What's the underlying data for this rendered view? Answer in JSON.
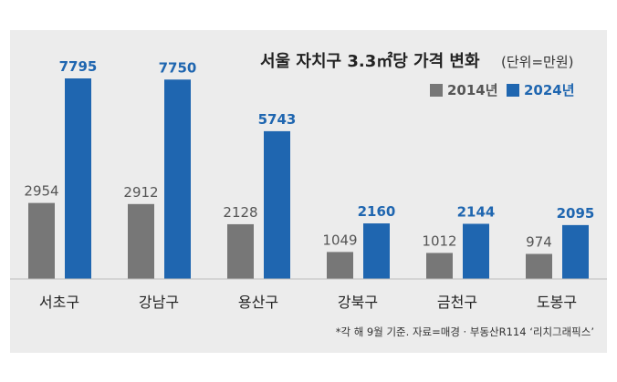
{
  "colors": {
    "series_2014": "#777777",
    "series_2024": "#1f66b0",
    "label_2014": "#555555",
    "label_2024": "#1f66b0",
    "panel_bg": "#ececec",
    "baseline": "#bdbdbd"
  },
  "chart_data": {
    "type": "bar",
    "title": "서울 자치구 3.3㎡당 가격 변화",
    "unit_note": "(단위=만원)",
    "categories": [
      "서초구",
      "강남구",
      "용산구",
      "강북구",
      "금천구",
      "도봉구"
    ],
    "series": [
      {
        "name": "2014년",
        "values": [
          2954,
          2912,
          2128,
          1049,
          1012,
          974
        ]
      },
      {
        "name": "2024년",
        "values": [
          7795,
          7750,
          5743,
          2160,
          2144,
          2095
        ]
      }
    ],
    "ylim": [
      0,
      7795
    ],
    "legend_position": "top-right",
    "grid": false,
    "source": "*각 해 9월 기준. 자료=매경 · 부동산R114 ‘리치그래픽스’"
  }
}
